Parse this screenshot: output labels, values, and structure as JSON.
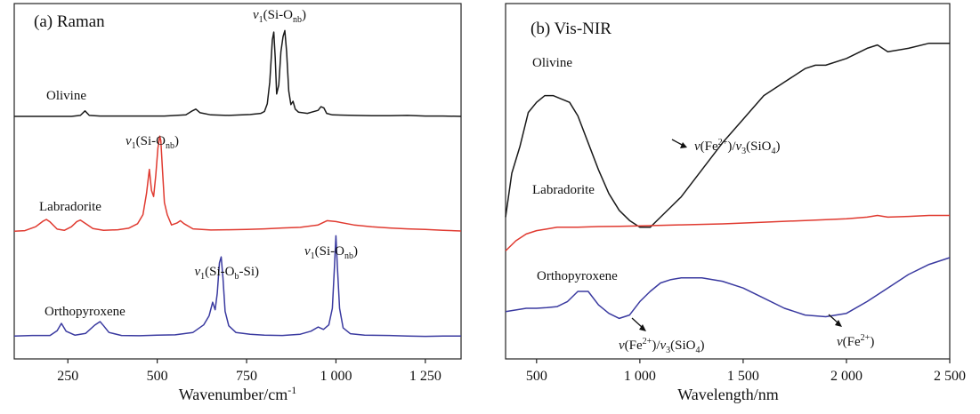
{
  "chart_data": [
    {
      "type": "line",
      "panel": "(a) Raman",
      "xlabel": "Wavenumber/cm",
      "xlabel_sup": "-1",
      "xlim": [
        100,
        1350
      ],
      "ticks": [
        250,
        500,
        750,
        1000,
        1250
      ],
      "tick_labels": [
        "250",
        "500",
        "750",
        "1 000",
        "1 250"
      ],
      "y_axis_ticks": false,
      "series": [
        {
          "name": "Olivine",
          "color": "#1a1a1a",
          "x": [
            100,
            200,
            260,
            285,
            298,
            310,
            340,
            400,
            460,
            520,
            580,
            598,
            608,
            620,
            650,
            700,
            760,
            790,
            800,
            808,
            815,
            822,
            826,
            830,
            834,
            840,
            846,
            852,
            857,
            862,
            868,
            874,
            880,
            886,
            895,
            920,
            950,
            958,
            966,
            974,
            990,
            1050,
            1100,
            1150,
            1200,
            1250,
            1300,
            1350
          ],
          "y": [
            0.6,
            0.6,
            0.6,
            0.9,
            2.4,
            0.9,
            0.7,
            0.7,
            0.7,
            0.7,
            1.1,
            2.4,
            3.0,
            1.8,
            1.1,
            0.9,
            1.2,
            1.6,
            2.2,
            4.8,
            12,
            26,
            28.5,
            20,
            8,
            11,
            22,
            27,
            29,
            22,
            9,
            4.5,
            5.6,
            3,
            2,
            1.6,
            2.6,
            3.8,
            3.4,
            1.6,
            1.1,
            0.9,
            0.8,
            0.8,
            0.9,
            0.7,
            0.7,
            0.6
          ]
        },
        {
          "name": "Labradorite",
          "color": "#e03a30",
          "x": [
            100,
            130,
            160,
            180,
            190,
            200,
            220,
            240,
            260,
            275,
            285,
            300,
            320,
            350,
            390,
            420,
            445,
            460,
            470,
            478,
            484,
            490,
            496,
            502,
            507,
            510,
            514,
            520,
            528,
            540,
            555,
            565,
            575,
            600,
            650,
            700,
            750,
            800,
            850,
            900,
            950,
            975,
            1000,
            1050,
            1100,
            1150,
            1200,
            1250,
            1300,
            1350
          ],
          "y": [
            0.5,
            0.7,
            2.0,
            3.8,
            4.4,
            3.6,
            1.2,
            0.8,
            2.0,
            3.7,
            4.2,
            3.0,
            1.4,
            0.8,
            1.0,
            1.5,
            3.0,
            6.0,
            13,
            21,
            14,
            12,
            19,
            28,
            32,
            30.5,
            22,
            10,
            6,
            2.6,
            3.2,
            4.0,
            3.0,
            1.3,
            0.9,
            1.0,
            1.1,
            1.3,
            1.6,
            1.8,
            2.6,
            4.0,
            3.7,
            2.6,
            2.0,
            1.6,
            1.3,
            1.1,
            0.8,
            0.6
          ]
        },
        {
          "name": "Orthopyroxene",
          "color": "#3a3aa0",
          "x": [
            100,
            150,
            200,
            220,
            232,
            245,
            270,
            300,
            325,
            340,
            350,
            365,
            400,
            450,
            500,
            550,
            600,
            630,
            645,
            655,
            662,
            668,
            674,
            679,
            684,
            690,
            700,
            720,
            760,
            800,
            850,
            900,
            930,
            950,
            965,
            980,
            990,
            996,
            1000,
            1004,
            1010,
            1020,
            1040,
            1080,
            1150,
            1200,
            1250,
            1300,
            1350
          ],
          "y": [
            0.8,
            1.0,
            1.0,
            2.6,
            5.0,
            2.4,
            1.1,
            1.7,
            4.4,
            5.6,
            4.2,
            2.0,
            1.0,
            0.9,
            1.1,
            1.2,
            2.0,
            4.5,
            7.5,
            12,
            9.5,
            15,
            25,
            27,
            20,
            9,
            4.2,
            2.0,
            1.4,
            1.1,
            1.0,
            1.4,
            2.4,
            3.8,
            3.0,
            4.5,
            10,
            24,
            34,
            24,
            10,
            3.5,
            1.6,
            1.1,
            1.0,
            0.8,
            0.7,
            0.8,
            0.8
          ]
        }
      ],
      "annotations": [
        {
          "text": "v1(Si-Onb)",
          "series": "Olivine"
        },
        {
          "text": "v1(Si-Onb)",
          "series": "Labradorite"
        },
        {
          "text": "v1(Si-Ob-Si)",
          "series": "Orthopyroxene"
        },
        {
          "text": "v1(Si-Onb)",
          "series": "Orthopyroxene"
        }
      ]
    },
    {
      "type": "line",
      "panel": "(b) Vis-NIR",
      "xlabel": "Wavelength/nm",
      "xlim": [
        350,
        2500
      ],
      "ticks": [
        500,
        1000,
        1500,
        2000,
        2500
      ],
      "tick_labels": [
        "500",
        "1 000",
        "1 500",
        "2 000",
        "2 500"
      ],
      "y_axis_ticks": false,
      "series": [
        {
          "name": "Olivine",
          "color": "#1a1a1a",
          "x": [
            350,
            380,
            420,
            460,
            500,
            540,
            580,
            620,
            660,
            700,
            750,
            800,
            850,
            900,
            950,
            1000,
            1050,
            1100,
            1150,
            1200,
            1300,
            1400,
            1500,
            1600,
            1700,
            1800,
            1850,
            1900,
            2000,
            2100,
            2150,
            2200,
            2300,
            2400,
            2500
          ],
          "y": [
            0.42,
            0.55,
            0.63,
            0.73,
            0.76,
            0.78,
            0.78,
            0.77,
            0.76,
            0.72,
            0.64,
            0.56,
            0.49,
            0.44,
            0.41,
            0.39,
            0.39,
            0.42,
            0.45,
            0.48,
            0.56,
            0.64,
            0.71,
            0.78,
            0.82,
            0.86,
            0.87,
            0.87,
            0.89,
            0.92,
            0.93,
            0.91,
            0.92,
            0.935,
            0.935
          ]
        },
        {
          "name": "Labradorite",
          "color": "#e03a30",
          "x": [
            350,
            400,
            450,
            500,
            550,
            600,
            700,
            800,
            900,
            1000,
            1200,
            1400,
            1600,
            1800,
            2000,
            2100,
            2150,
            2200,
            2300,
            2400,
            2500
          ],
          "y": [
            0.32,
            0.35,
            0.37,
            0.38,
            0.385,
            0.39,
            0.39,
            0.392,
            0.393,
            0.394,
            0.397,
            0.4,
            0.405,
            0.41,
            0.415,
            0.42,
            0.425,
            0.42,
            0.422,
            0.425,
            0.425
          ]
        },
        {
          "name": "Orthopyroxene",
          "color": "#3a3aa0",
          "x": [
            350,
            400,
            450,
            500,
            550,
            600,
            650,
            700,
            750,
            800,
            850,
            900,
            950,
            1000,
            1050,
            1100,
            1150,
            1200,
            1300,
            1400,
            1500,
            1600,
            1700,
            1800,
            1900,
            2000,
            2100,
            2200,
            2300,
            2400,
            2500
          ],
          "y": [
            0.14,
            0.145,
            0.15,
            0.15,
            0.152,
            0.155,
            0.17,
            0.2,
            0.2,
            0.16,
            0.135,
            0.12,
            0.13,
            0.17,
            0.2,
            0.225,
            0.235,
            0.24,
            0.24,
            0.23,
            0.21,
            0.18,
            0.15,
            0.13,
            0.125,
            0.135,
            0.17,
            0.21,
            0.25,
            0.28,
            0.3
          ]
        }
      ],
      "annotations": [
        {
          "text": "v(Fe2+)/v3(SiO4)",
          "series": "Olivine"
        },
        {
          "text": "v(Fe2+)/v3(SiO4)",
          "series": "Orthopyroxene"
        },
        {
          "text": "v(Fe2+)",
          "series": "Orthopyroxene"
        }
      ]
    }
  ],
  "text": {
    "panel_a_title": "(a) Raman",
    "panel_b_title": "(b) Vis-NIR",
    "label_olivine": "Olivine",
    "label_labradorite": "Labradorite",
    "label_orthopyroxene": "Orthopyroxene",
    "nu": "v",
    "nu_sub1": "1",
    "nu_sub3": "3",
    "si_o_prefix": "(Si-O",
    "sub_nb": "nb",
    "sub_b": "b",
    "close_paren": ")",
    "si_suffix": "-Si)",
    "fe_open": "(Fe",
    "fe_sup": "2+",
    "fe_close": ")",
    "slash": "/",
    "sio4_open": "(SiO",
    "sub_4": "4"
  }
}
